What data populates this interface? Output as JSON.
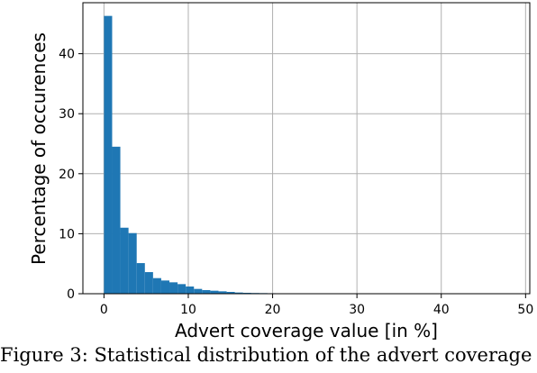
{
  "chart_data": {
    "type": "histogram",
    "xlabel": "Advert coverage value [in %]",
    "ylabel": "Percentage of occurences",
    "xlim": [
      -2.5,
      50.5
    ],
    "ylim": [
      0,
      48.5
    ],
    "xticks": [
      0,
      10,
      20,
      30,
      40,
      50
    ],
    "yticks": [
      0,
      10,
      20,
      30,
      40
    ],
    "grid": true,
    "bar_color": "#1f77b4",
    "bin_width": 0.97,
    "bins": [
      0,
      0.97,
      1.94,
      2.91,
      3.88,
      4.85,
      5.82,
      6.79,
      7.76,
      8.73,
      9.7,
      10.67,
      11.64,
      12.61,
      13.58,
      14.55,
      15.52,
      16.49,
      17.46,
      18.43,
      19.4,
      20.37
    ],
    "values": [
      46.3,
      24.5,
      11.0,
      10.1,
      5.1,
      3.6,
      2.6,
      2.2,
      1.9,
      1.6,
      1.2,
      0.8,
      0.6,
      0.5,
      0.4,
      0.3,
      0.2,
      0.15,
      0.12,
      0.1,
      0.08,
      0.06
    ]
  },
  "caption": "Figure 3: Statistical distribution of the advert coverage"
}
